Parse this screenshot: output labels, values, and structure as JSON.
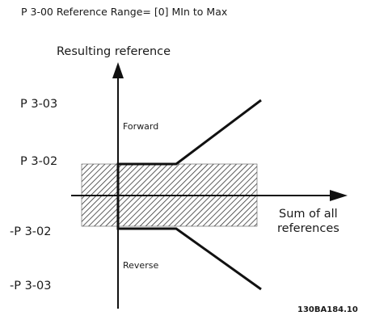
{
  "title": "P 3-00 Reference Range= [0] MIn to Max",
  "y_axis_label": "Resulting reference",
  "x_axis_label_line1": "Sum of all",
  "x_axis_label_line2": "references",
  "y_ticks": {
    "p303": "P 3-03",
    "p302": "P 3-02",
    "neg_p302": "-P 3-02",
    "neg_p303": "-P 3-03"
  },
  "regions": {
    "forward": "Forward",
    "reverse": "Reverse"
  },
  "figure_code": "130BA184.10",
  "colors": {
    "line": "#111111",
    "hatch": "#333333"
  }
}
